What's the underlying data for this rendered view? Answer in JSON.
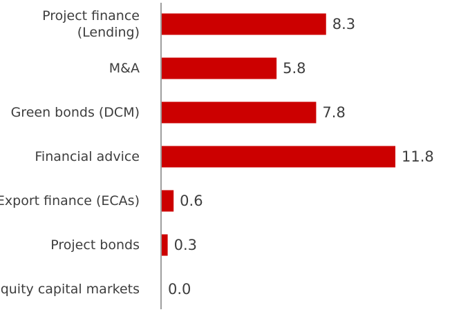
{
  "chart_data": {
    "type": "bar",
    "orientation": "horizontal",
    "title": "",
    "xlabel": "",
    "ylabel": "",
    "categories": [
      [
        "Project finance",
        "(Lending)"
      ],
      [
        "M&A"
      ],
      [
        "Green bonds (DCM)"
      ],
      [
        "Financial advice"
      ],
      [
        "Export finance (ECAs)"
      ],
      [
        "Project bonds"
      ],
      [
        "Equity capital markets"
      ]
    ],
    "values": [
      8.3,
      5.8,
      7.8,
      11.8,
      0.6,
      0.3,
      0.0
    ],
    "value_labels": [
      "8.3",
      "5.8",
      "7.8",
      "11.8",
      "0.6",
      "0.3",
      "0.0"
    ],
    "xlim": [
      0,
      11.8
    ],
    "grid": false,
    "legend": "none",
    "colors": {
      "bar": "#cc0000",
      "axis": "#9e9e9e",
      "text": "#3d3d3d"
    }
  }
}
